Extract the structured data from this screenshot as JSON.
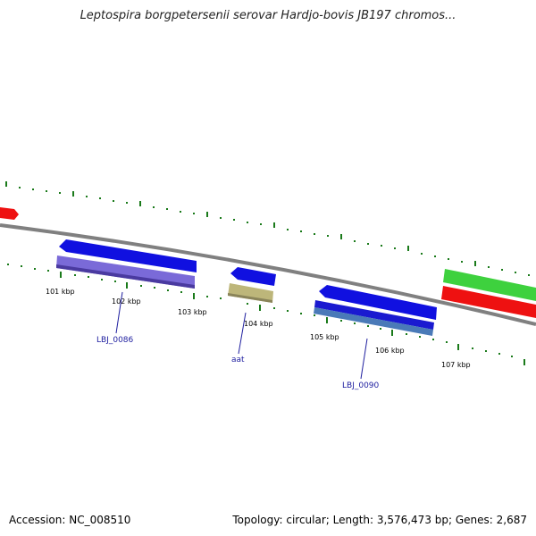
{
  "title": "Leptospira borgpetersenii serovar Hardjo-bovis JB197 chromos...",
  "footer": {
    "accession": "Accession: NC_008510",
    "summary": "Topology: circular; Length: 3,576,473 bp; Genes: 2,687"
  },
  "ticks": [
    "101 kbp",
    "102 kbp",
    "103 kbp",
    "104 kbp",
    "105 kbp",
    "106 kbp",
    "107 kbp"
  ],
  "gene_labels": [
    "LBJ_0086",
    "aat",
    "LBJ_0090"
  ],
  "colors": {
    "backbone": "#808080",
    "blue": "#1010e0",
    "purple": "#7a6ad8",
    "olive": "#bdb67a",
    "steel": "#4a7ab8",
    "red": "#ee1111",
    "green": "#3ed13e",
    "tick": "#1a7a1a",
    "label": "#2020a0"
  }
}
